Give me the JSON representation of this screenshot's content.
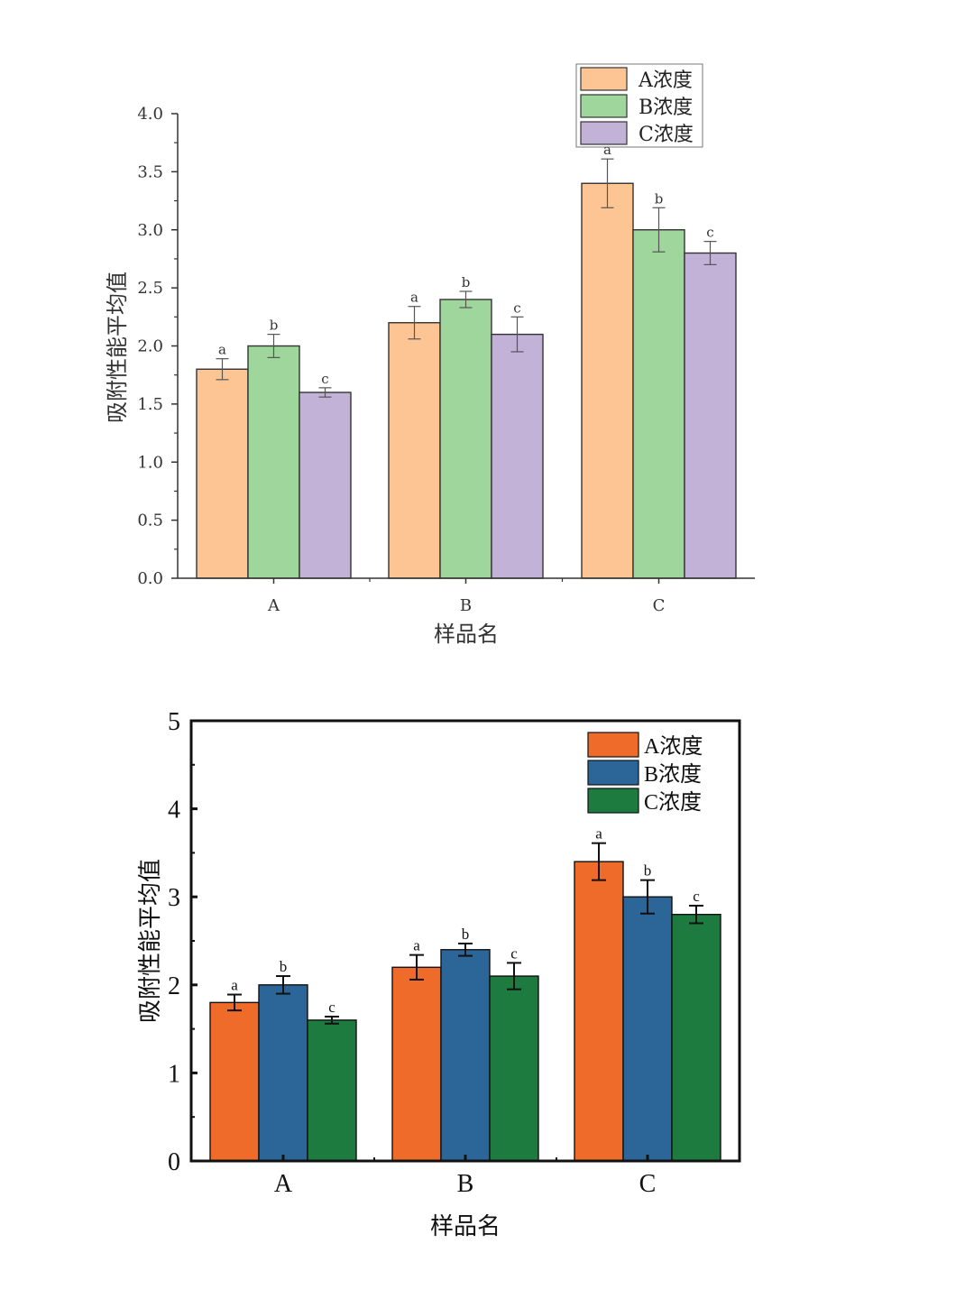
{
  "chart_data": [
    {
      "type": "bar",
      "categories": [
        "A",
        "B",
        "C"
      ],
      "series": [
        {
          "name": "A浓度",
          "values": [
            1.8,
            2.2,
            3.4
          ],
          "errors": [
            0.09,
            0.14,
            0.21
          ],
          "letters": [
            "a",
            "a",
            "a"
          ],
          "color": "#FDC593"
        },
        {
          "name": "B浓度",
          "values": [
            2.0,
            2.4,
            3.0
          ],
          "errors": [
            0.1,
            0.07,
            0.19
          ],
          "letters": [
            "b",
            "b",
            "b"
          ],
          "color": "#9ED69B"
        },
        {
          "name": "C浓度",
          "values": [
            1.6,
            2.1,
            2.8
          ],
          "errors": [
            0.04,
            0.15,
            0.1
          ],
          "letters": [
            "c",
            "c",
            "c"
          ],
          "color": "#C2B2D8"
        }
      ],
      "ylim": [
        0,
        4
      ],
      "yticks": [
        "0.0",
        "0.5",
        "1.0",
        "1.5",
        "2.0",
        "2.5",
        "3.0",
        "3.5",
        "4.0"
      ],
      "xlabel": "样品名",
      "ylabel": "吸附性能平均值",
      "legend_position": "top-right",
      "grid": false
    },
    {
      "type": "bar",
      "categories": [
        "A",
        "B",
        "C"
      ],
      "series": [
        {
          "name": "A浓度",
          "values": [
            1.8,
            2.2,
            3.4
          ],
          "errors": [
            0.09,
            0.14,
            0.21
          ],
          "letters": [
            "a",
            "a",
            "a"
          ],
          "color": "#EE6B29"
        },
        {
          "name": "B浓度",
          "values": [
            2.0,
            2.4,
            3.0
          ],
          "errors": [
            0.1,
            0.07,
            0.19
          ],
          "letters": [
            "b",
            "b",
            "b"
          ],
          "color": "#2C6598"
        },
        {
          "name": "C浓度",
          "values": [
            1.6,
            2.1,
            2.8
          ],
          "errors": [
            0.04,
            0.15,
            0.1
          ],
          "letters": [
            "c",
            "c",
            "c"
          ],
          "color": "#1E7B40"
        }
      ],
      "ylim": [
        0,
        5
      ],
      "yticks": [
        "0",
        "1",
        "2",
        "3",
        "4",
        "5"
      ],
      "xlabel": "样品名",
      "ylabel": "吸附性能平均值",
      "legend_position": "top-right",
      "grid": false
    }
  ]
}
